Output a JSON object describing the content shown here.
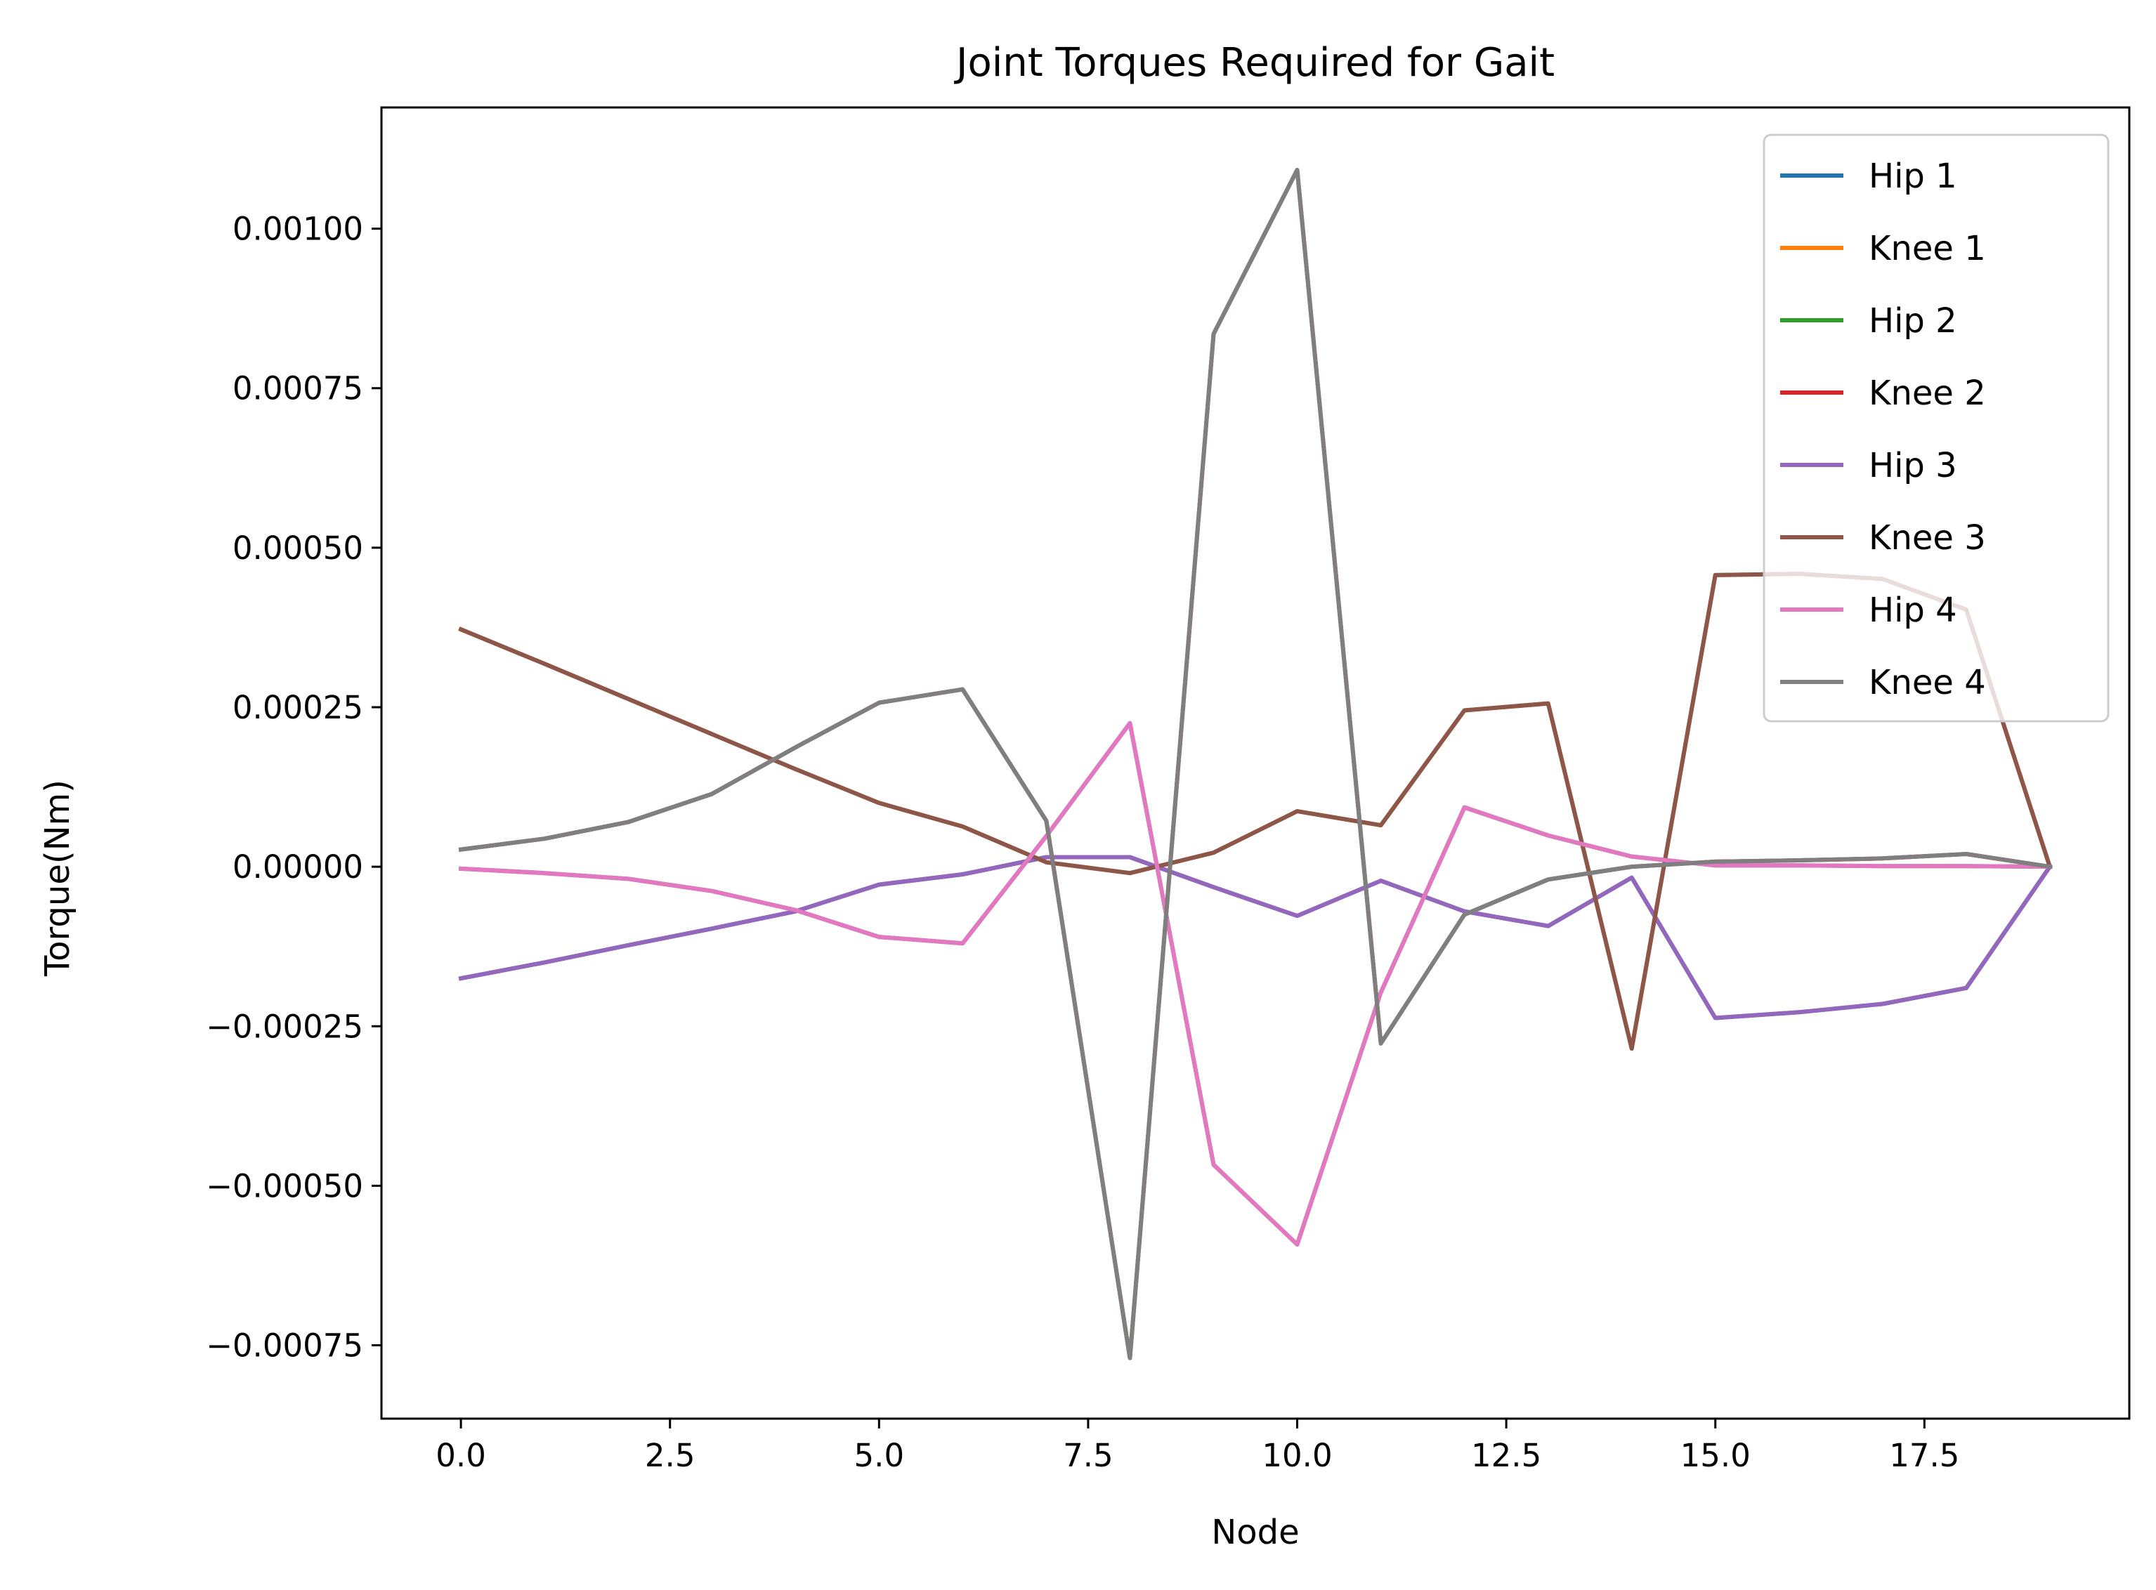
{
  "chart_data": {
    "type": "line",
    "title": "Joint Torques Required for Gait",
    "xlabel": "Node",
    "ylabel": "Torque(Nm)",
    "xlim": [
      -0.95,
      19.95
    ],
    "ylim": [
      -0.000865,
      0.00119
    ],
    "x": [
      0,
      1,
      2,
      3,
      4,
      5,
      6,
      7,
      8,
      9,
      10,
      11,
      12,
      13,
      14,
      15,
      16,
      17,
      18,
      19
    ],
    "x_ticks": [
      0.0,
      2.5,
      5.0,
      7.5,
      10.0,
      12.5,
      15.0,
      17.5
    ],
    "x_tick_labels": [
      "0.0",
      "2.5",
      "5.0",
      "7.5",
      "10.0",
      "12.5",
      "15.0",
      "17.5"
    ],
    "y_ticks": [
      -0.00075,
      -0.0005,
      -0.00025,
      0.0,
      0.00025,
      0.0005,
      0.00075,
      0.001
    ],
    "y_tick_labels": [
      "−0.00075",
      "−0.00050",
      "−0.00025",
      "0.00000",
      "0.00025",
      "0.00050",
      "0.00075",
      "0.00100"
    ],
    "grid": false,
    "legend_position": "top-right",
    "series": [
      {
        "name": "Hip 1",
        "color": "#1f77b4",
        "values": [
          -0.000175,
          -0.00015,
          -0.000123,
          -9.7e-05,
          -7e-05,
          -2.8e-05,
          -1.2e-05,
          1.5e-05,
          1.5e-05,
          -3.2e-05,
          -7.7e-05,
          -2.2e-05,
          -7e-05,
          -9.3e-05,
          -1.7e-05,
          -0.000237,
          -0.000228,
          -0.000215,
          -0.00019,
          0.0
        ]
      },
      {
        "name": "Knee 1",
        "color": "#ff7f0e",
        "values": [
          0.000372,
          0.000318,
          0.000263,
          0.000208,
          0.000153,
          0.0001,
          6.3e-05,
          7e-06,
          -1e-05,
          2.2e-05,
          8.7e-05,
          6.5e-05,
          0.000245,
          0.000256,
          -0.000285,
          0.000457,
          0.000459,
          0.000451,
          0.000403,
          0.0
        ]
      },
      {
        "name": "Hip 2",
        "color": "#2ca02c",
        "values": [
          -3e-06,
          -1e-05,
          -1.9e-05,
          -3.8e-05,
          -6.8e-05,
          -0.00011,
          -0.00012,
          4.8e-05,
          0.000225,
          -0.000467,
          -0.000592,
          -0.000197,
          9.3e-05,
          4.9e-05,
          1.6e-05,
          2e-06,
          2e-06,
          1e-06,
          1e-06,
          0.0
        ]
      },
      {
        "name": "Knee 2",
        "color": "#d62728",
        "values": [
          2.7e-05,
          4.4e-05,
          7e-05,
          0.000114,
          0.000187,
          0.000257,
          0.000278,
          7.2e-05,
          -0.00077,
          0.000835,
          0.001092,
          -0.000277,
          -7.5e-05,
          -2e-05,
          0.0,
          8e-06,
          1e-05,
          1.3e-05,
          2e-05,
          0.0
        ]
      },
      {
        "name": "Hip 3",
        "color": "#9467bd",
        "values": [
          -0.000175,
          -0.00015,
          -0.000123,
          -9.7e-05,
          -7e-05,
          -2.8e-05,
          -1.2e-05,
          1.5e-05,
          1.5e-05,
          -3.2e-05,
          -7.7e-05,
          -2.2e-05,
          -7e-05,
          -9.3e-05,
          -1.7e-05,
          -0.000237,
          -0.000228,
          -0.000215,
          -0.00019,
          0.0
        ]
      },
      {
        "name": "Knee 3",
        "color": "#8c564b",
        "values": [
          0.000372,
          0.000318,
          0.000263,
          0.000208,
          0.000153,
          0.0001,
          6.3e-05,
          7e-06,
          -1e-05,
          2.2e-05,
          8.7e-05,
          6.5e-05,
          0.000245,
          0.000256,
          -0.000285,
          0.000457,
          0.000459,
          0.000451,
          0.000403,
          0.0
        ]
      },
      {
        "name": "Hip 4",
        "color": "#e377c2",
        "values": [
          -3e-06,
          -1e-05,
          -1.9e-05,
          -3.8e-05,
          -6.8e-05,
          -0.00011,
          -0.00012,
          4.8e-05,
          0.000225,
          -0.000467,
          -0.000592,
          -0.000197,
          9.3e-05,
          4.9e-05,
          1.6e-05,
          2e-06,
          2e-06,
          1e-06,
          1e-06,
          0.0
        ]
      },
      {
        "name": "Knee 4",
        "color": "#7f7f7f",
        "values": [
          2.7e-05,
          4.4e-05,
          7e-05,
          0.000114,
          0.000187,
          0.000257,
          0.000278,
          7.2e-05,
          -0.00077,
          0.000835,
          0.001092,
          -0.000277,
          -7.5e-05,
          -2e-05,
          0.0,
          8e-06,
          1e-05,
          1.3e-05,
          2e-05,
          0.0
        ]
      }
    ]
  }
}
